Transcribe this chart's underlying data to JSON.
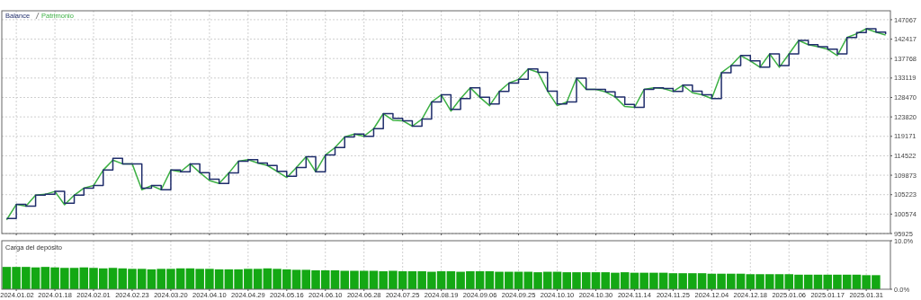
{
  "chart_data": [
    {
      "type": "line",
      "legend": "top left",
      "grid": true,
      "tick_labels": "y",
      "categories": [
        null,
        "2024.01.02",
        null,
        null,
        null,
        "2024.01.18",
        null,
        null,
        null,
        "2024.02.01",
        null,
        null,
        null,
        "2024.02.23",
        null,
        null,
        null,
        "2024.03.20",
        null,
        null,
        null,
        "2024.04.10",
        null,
        null,
        null,
        "2024.04.29",
        null,
        null,
        null,
        "2024.05.16",
        null,
        null,
        null,
        "2024.06.10",
        null,
        null,
        null,
        "2024.06.28",
        null,
        null,
        null,
        "2024.07.25",
        null,
        null,
        null,
        "2024.08.19",
        null,
        null,
        null,
        "2024.09.06",
        null,
        null,
        null,
        "2024.09.25",
        null,
        null,
        null,
        "2024.10.10",
        null,
        null,
        null,
        "2024.10.30",
        null,
        null,
        null,
        "2024.11.14",
        null,
        null,
        null,
        "2024.11.25",
        null,
        null,
        null,
        "2024.12.04",
        null,
        null,
        null,
        "2024.12.18",
        null,
        null,
        null,
        "2025.01.06",
        null,
        null,
        null,
        "2025.01.17",
        null,
        null,
        null,
        "2025.01.31",
        null,
        null
      ],
      "ylim": [
        95925,
        149200
      ],
      "yticks": [
        95925,
        100574,
        105223,
        109873,
        114522,
        119171,
        123820,
        128470,
        133119,
        137768,
        142417,
        147067
      ],
      "series": [
        {
          "name": "Patrimonio",
          "type": "line",
          "color": "#3cb043",
          "values": [
            99200,
            102900,
            102500,
            105100,
            105300,
            106000,
            102800,
            105100,
            106800,
            107400,
            111100,
            113500,
            112600,
            112600,
            106400,
            107400,
            106400,
            111100,
            110700,
            112600,
            110500,
            108600,
            107900,
            110400,
            113200,
            113600,
            112800,
            112200,
            110800,
            109300,
            111700,
            114300,
            110700,
            114700,
            116500,
            119000,
            119700,
            119200,
            121000,
            124600,
            123000,
            122900,
            121600,
            123300,
            127400,
            129100,
            125200,
            128200,
            130800,
            128500,
            126500,
            129900,
            131900,
            132800,
            135300,
            134500,
            130000,
            126500,
            127400,
            133100,
            130400,
            130400,
            129800,
            128600,
            126300,
            126100,
            130400,
            130800,
            130600,
            129900,
            131400,
            129600,
            129100,
            128200,
            134400,
            136100,
            138500,
            137200,
            135700,
            138900,
            135700,
            138900,
            142100,
            141100,
            140600,
            140000,
            138500,
            142800,
            143700,
            144900,
            144100,
            143400
          ]
        },
        {
          "name": "Balance",
          "type": "step",
          "color": "#1f2d6b",
          "values": [
            99500,
            102900,
            102500,
            105100,
            105300,
            106000,
            103200,
            105100,
            106800,
            107400,
            111100,
            113900,
            112600,
            112600,
            106800,
            107400,
            106400,
            111100,
            110700,
            112600,
            110500,
            108900,
            107900,
            110400,
            113200,
            113600,
            112800,
            112200,
            110800,
            109600,
            111700,
            114300,
            110700,
            114700,
            116500,
            119000,
            119700,
            119200,
            121000,
            124600,
            123500,
            122900,
            121600,
            123300,
            127400,
            129100,
            125600,
            128200,
            130800,
            128500,
            126900,
            129900,
            131900,
            132800,
            135300,
            134500,
            130000,
            126900,
            127400,
            133100,
            130400,
            130400,
            129800,
            128600,
            126800,
            126100,
            130400,
            130800,
            130600,
            129900,
            131400,
            130000,
            129100,
            128200,
            134400,
            136100,
            138500,
            137200,
            135700,
            138900,
            136100,
            138900,
            142100,
            141100,
            140600,
            140000,
            138900,
            142800,
            144000,
            144900,
            144100,
            143600
          ]
        }
      ]
    },
    {
      "type": "bar",
      "title": "Carga del depósito",
      "grid": "x",
      "color": "#14a814",
      "categories": [
        null,
        "2024.01.02",
        null,
        null,
        null,
        "2024.01.18",
        null,
        null,
        null,
        "2024.02.01",
        null,
        null,
        null,
        "2024.02.23",
        null,
        null,
        null,
        "2024.03.20",
        null,
        null,
        null,
        "2024.04.10",
        null,
        null,
        null,
        "2024.04.29",
        null,
        null,
        null,
        "2024.05.16",
        null,
        null,
        null,
        "2024.06.10",
        null,
        null,
        null,
        "2024.06.28",
        null,
        null,
        null,
        "2024.07.25",
        null,
        null,
        null,
        "2024.08.19",
        null,
        null,
        null,
        "2024.09.06",
        null,
        null,
        null,
        "2024.09.25",
        null,
        null,
        null,
        "2024.10.10",
        null,
        null,
        null,
        "2024.10.30",
        null,
        null,
        null,
        "2024.11.14",
        null,
        null,
        null,
        "2024.11.25",
        null,
        null,
        null,
        "2024.12.04",
        null,
        null,
        null,
        "2024.12.18",
        null,
        null,
        null,
        "2025.01.06",
        null,
        null,
        null,
        "2025.01.17",
        null,
        null,
        null,
        "2025.01.31",
        null,
        null
      ],
      "ylim": [
        0,
        10
      ],
      "yticks": [
        {
          "value": 0,
          "label": "0.0%"
        },
        {
          "value": 10,
          "label": "10.0%"
        }
      ],
      "values": [
        4.6,
        4.6,
        4.6,
        4.5,
        4.6,
        4.5,
        4.4,
        4.4,
        4.5,
        4.4,
        4.3,
        4.4,
        4.3,
        4.2,
        4.2,
        4.1,
        4.2,
        4.2,
        4.3,
        4.3,
        4.2,
        4.2,
        4.1,
        4.1,
        4.1,
        4.2,
        4.2,
        4.3,
        4.2,
        4.1,
        4.0,
        4.0,
        3.9,
        3.9,
        3.9,
        3.8,
        3.8,
        3.8,
        3.8,
        3.7,
        3.8,
        3.7,
        3.7,
        3.7,
        3.6,
        3.7,
        3.7,
        3.6,
        3.7,
        3.7,
        3.7,
        3.6,
        3.6,
        3.6,
        3.6,
        3.5,
        3.6,
        3.6,
        3.5,
        3.5,
        3.5,
        3.5,
        3.5,
        3.4,
        3.5,
        3.4,
        3.4,
        3.4,
        3.4,
        3.3,
        3.3,
        3.3,
        3.3,
        3.2,
        3.2,
        3.2,
        3.2,
        3.1,
        3.1,
        3.1,
        3.1,
        3.1,
        3.0,
        3.0,
        3.0,
        3.0,
        3.0,
        3.0,
        3.0,
        2.9,
        2.9,
        null
      ]
    }
  ]
}
